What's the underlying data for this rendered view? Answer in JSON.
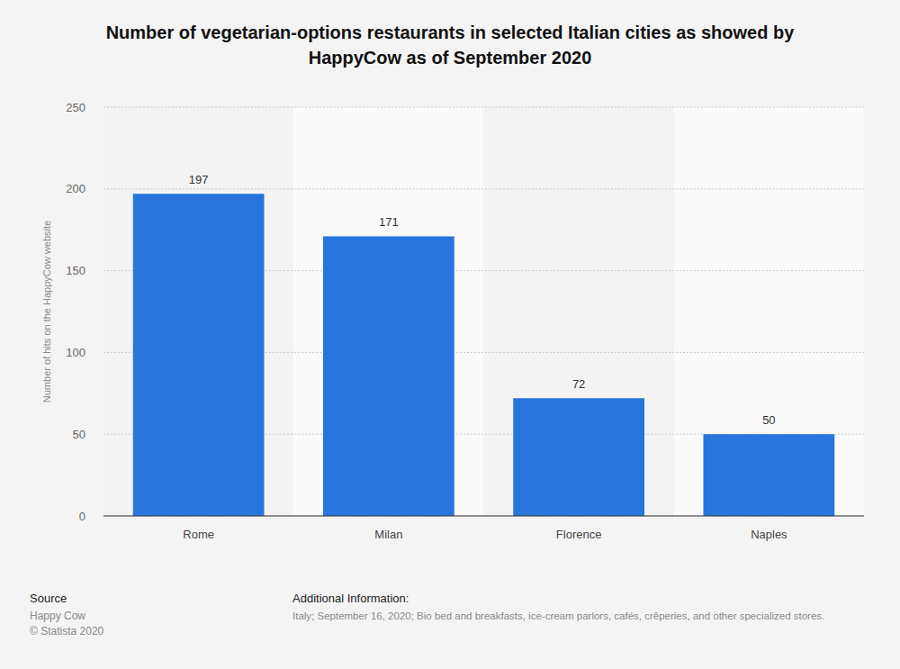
{
  "chart_data": {
    "type": "bar",
    "title": "Number of vegetarian-options restaurants in selected Italian cities as showed by HappyCow as of September 2020",
    "y_label": "Number of hits on the HappyCow website",
    "categories": [
      "Rome",
      "Milan",
      "Florence",
      "Naples"
    ],
    "values": [
      197,
      171,
      72,
      50
    ],
    "color": "#2876dd",
    "ylim": [
      0,
      250
    ],
    "yticks": [
      0,
      50,
      100,
      150,
      200,
      250
    ],
    "grid": true,
    "data_labels": true,
    "source_label": "Source",
    "source": "Happy Cow",
    "copyright": "© Statista 2020",
    "additional_info_label": "Additional Information:",
    "additional_info": "Italy; September 16, 2020; Bio bed and breakfasts, ice-cream parlors, cafés, crêperies, and other specialized stores."
  }
}
